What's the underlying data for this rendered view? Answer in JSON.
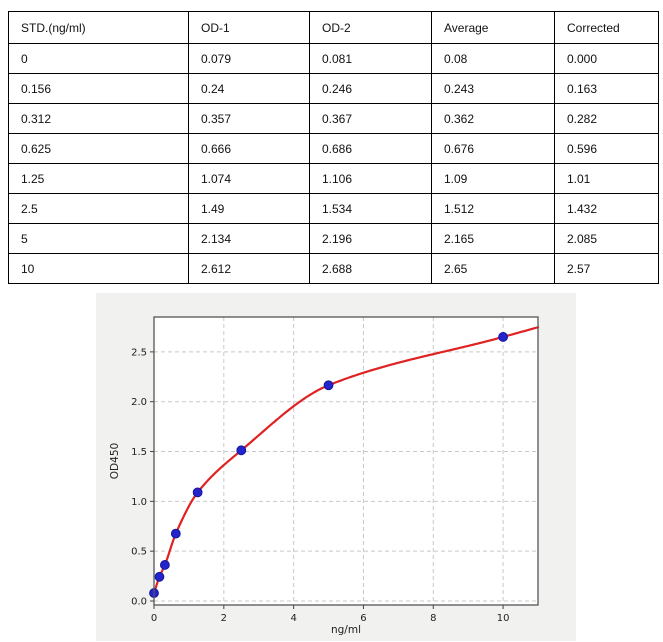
{
  "table": {
    "headers": [
      "STD.(ng/ml)",
      "OD-1",
      "OD-2",
      "Average",
      "Corrected"
    ],
    "rows": [
      [
        "0",
        "0.079",
        "0.081",
        "0.08",
        "0.000"
      ],
      [
        "0.156",
        "0.24",
        "0.246",
        "0.243",
        "0.163"
      ],
      [
        "0.312",
        "0.357",
        "0.367",
        "0.362",
        "0.282"
      ],
      [
        "0.625",
        "0.666",
        "0.686",
        "0.676",
        "0.596"
      ],
      [
        "1.25",
        "1.074",
        "1.106",
        "1.09",
        "1.01"
      ],
      [
        "2.5",
        "1.49",
        "1.534",
        "1.512",
        "1.432"
      ],
      [
        "5",
        "2.134",
        "2.196",
        "2.165",
        "2.085"
      ],
      [
        "10",
        "2.612",
        "2.688",
        "2.65",
        "2.57"
      ]
    ]
  },
  "chart_data": {
    "type": "scatter",
    "title": "",
    "xlabel": "ng/ml",
    "ylabel": "OD450",
    "points": {
      "x": [
        0,
        0.156,
        0.312,
        0.625,
        1.25,
        2.5,
        5,
        10
      ],
      "y": [
        0.08,
        0.243,
        0.362,
        0.676,
        1.09,
        1.512,
        2.165,
        2.65
      ]
    },
    "fit_curve": {
      "present": true,
      "color": "#e02222",
      "extends_to_x": 11
    },
    "marker_color": "#2424cc",
    "marker_edge_color": "#15159b",
    "xlim": [
      0,
      11
    ],
    "ylim": [
      -0.04,
      2.85
    ],
    "xticks": [
      0,
      2,
      4,
      6,
      8,
      10
    ],
    "yticks": [
      0,
      0.5,
      1.0,
      1.5,
      2.0,
      2.5
    ],
    "grid": "dashed",
    "legend": "none",
    "figure_bg": "#f1f1f0",
    "plot_bg": "#ffffff"
  }
}
